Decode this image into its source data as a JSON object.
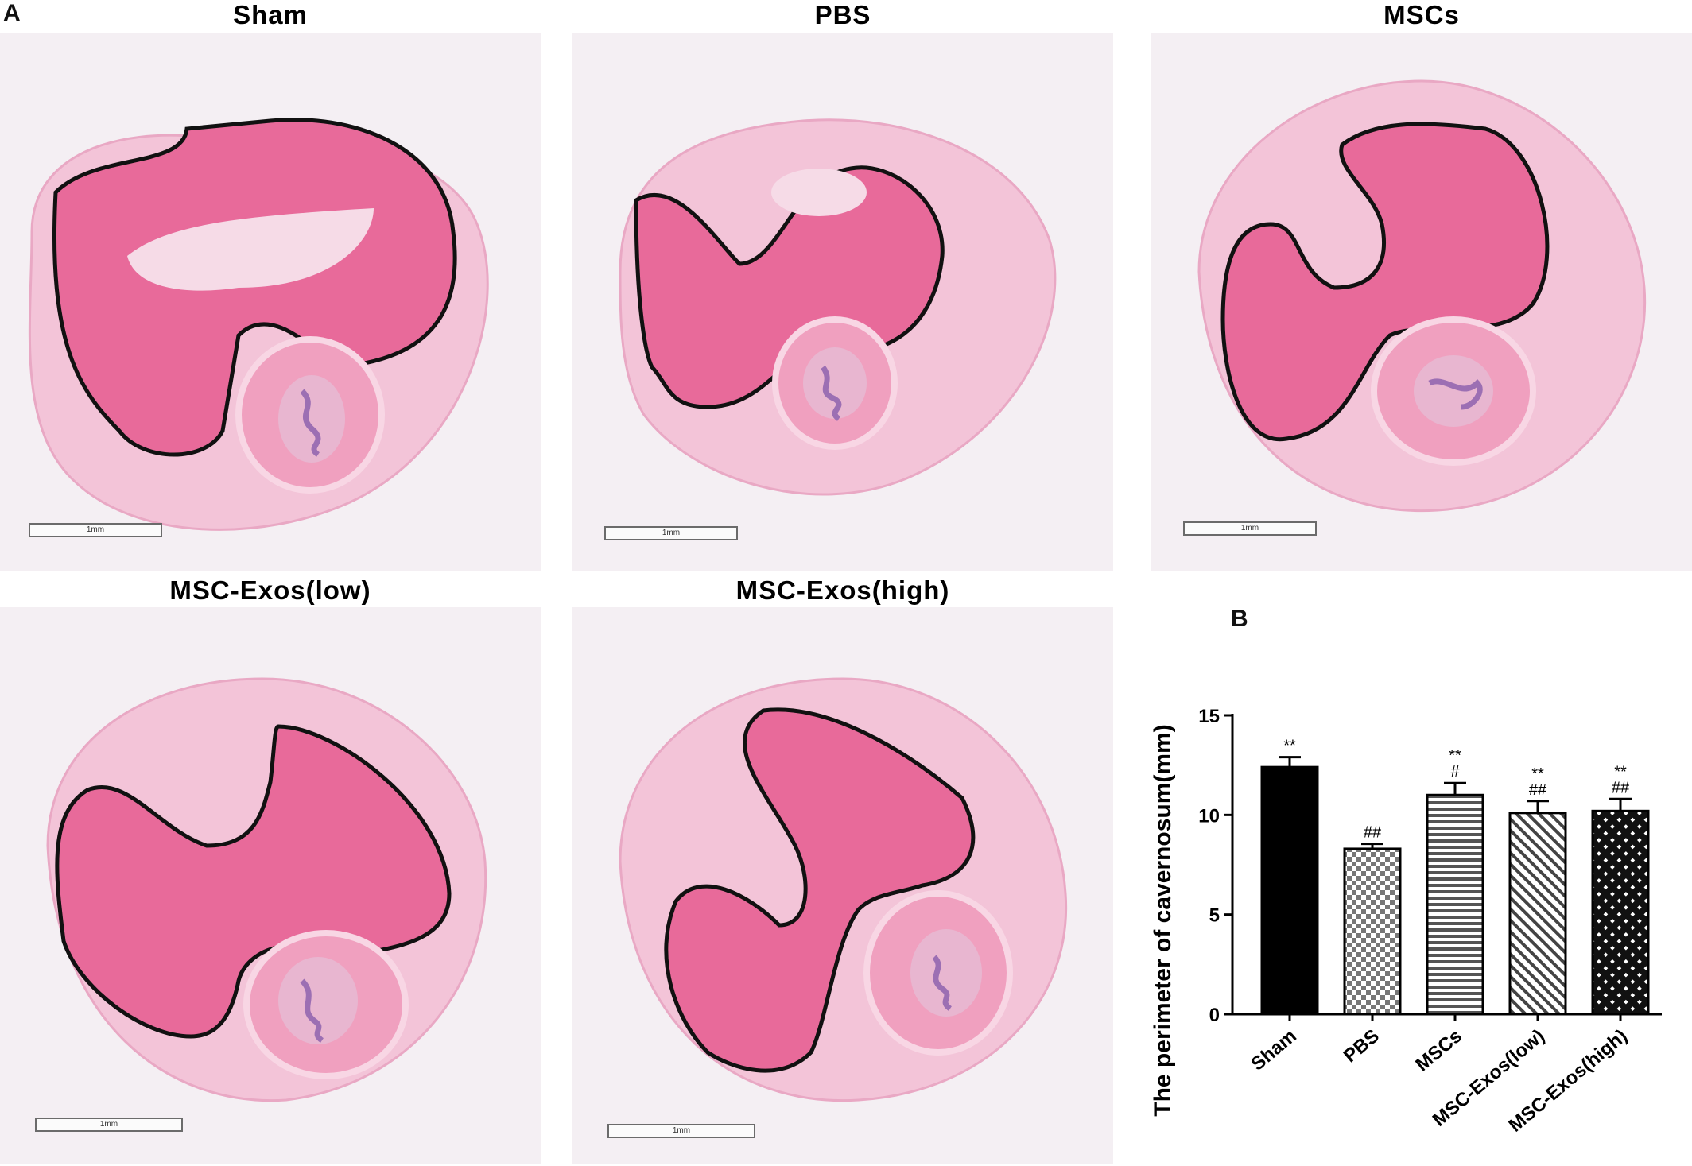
{
  "figure": {
    "panel_a_letter": "A",
    "panel_b_letter": "B"
  },
  "micrographs": [
    {
      "title": "Sham",
      "scale_label": "1mm"
    },
    {
      "title": "PBS",
      "scale_label": "1mm"
    },
    {
      "title": "MSCs",
      "scale_label": "1mm"
    },
    {
      "title": "MSC-Exos(low)",
      "scale_label": "1mm"
    },
    {
      "title": "MSC-Exos(high)",
      "scale_label": "1mm"
    }
  ],
  "colors": {
    "tissue_pink": "#e86a9a",
    "tissue_light": "#f3c4d8",
    "background": "#f4eff3",
    "outline": "#111111",
    "urethra_purple": "#9c6fb3"
  },
  "chart_data": {
    "type": "bar",
    "ylabel": "The perimeter of cavernosum(mm)",
    "categories": [
      "Sham",
      "PBS",
      "MSCs",
      "MSC-Exos(low)",
      "MSC-Exos(high)"
    ],
    "values": [
      12.4,
      8.3,
      11.0,
      10.1,
      10.2
    ],
    "errors": [
      0.5,
      0.25,
      0.6,
      0.6,
      0.6
    ],
    "annotations": [
      [
        "**"
      ],
      [
        "##"
      ],
      [
        "**",
        "#"
      ],
      [
        "**",
        "##"
      ],
      [
        "**",
        "##"
      ]
    ],
    "patterns": [
      "solid",
      "checker",
      "horizontal",
      "diagonal",
      "crosshatch"
    ],
    "ylim": [
      0,
      15
    ],
    "yticks": [
      "0",
      "5",
      "10",
      "15"
    ]
  }
}
